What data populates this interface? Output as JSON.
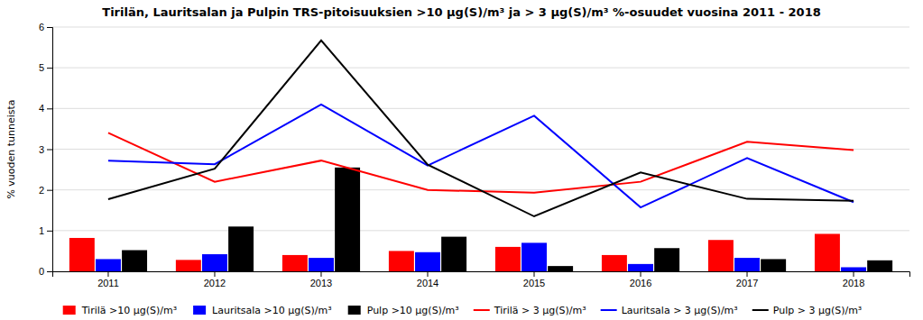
{
  "chart_data": {
    "type": "bar",
    "title": "Tirilän, Lauritsalan ja Pulpin TRS-pitoisuuksien >10 μg(S)/m³ ja > 3 μg(S)/m³ %-osuudet vuosina 2011 - 2018",
    "y_label": "% vuoden tunneista",
    "categories": [
      "2011",
      "2012",
      "2013",
      "2014",
      "2015",
      "2016",
      "2017",
      "2018"
    ],
    "series": [
      {
        "name": "Tirilä >10 μg(S)/m³",
        "type": "bar",
        "color": "#FF0000",
        "values": [
          0.82,
          0.28,
          0.4,
          0.5,
          0.6,
          0.4,
          0.77,
          0.92
        ]
      },
      {
        "name": "Lauritsala >10 μg(S)/m³",
        "type": "bar",
        "color": "#0000FF",
        "values": [
          0.3,
          0.42,
          0.33,
          0.47,
          0.7,
          0.18,
          0.33,
          0.1
        ]
      },
      {
        "name": "Pulp >10 μg(S)/m³",
        "type": "bar",
        "color": "#000000",
        "values": [
          0.52,
          1.1,
          2.55,
          0.85,
          0.13,
          0.57,
          0.3,
          0.27
        ]
      },
      {
        "name": "Tirilä > 3 μg(S)/m³",
        "type": "line",
        "color": "#FF0000",
        "values": [
          3.4,
          2.2,
          2.72,
          2.0,
          1.93,
          2.2,
          3.18,
          2.98
        ]
      },
      {
        "name": "Lauritsala > 3 μg(S)/m³",
        "type": "line",
        "color": "#0000FF",
        "values": [
          2.72,
          2.63,
          4.1,
          2.6,
          3.82,
          1.57,
          2.78,
          1.7
        ]
      },
      {
        "name": "Pulp > 3 μg(S)/m³",
        "type": "line",
        "color": "#000000",
        "values": [
          1.77,
          2.52,
          5.67,
          2.62,
          1.35,
          2.43,
          1.78,
          1.73
        ]
      }
    ],
    "ylim": [
      0,
      6
    ],
    "yticks": [
      0,
      1,
      2,
      3,
      4,
      5,
      6
    ],
    "grid": true,
    "legend": "bottom"
  }
}
